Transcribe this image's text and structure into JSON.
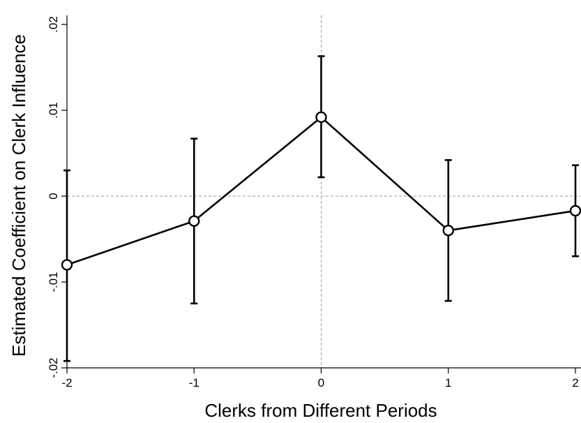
{
  "chart_data": {
    "type": "line",
    "xlabel": "Clerks from Different Periods",
    "ylabel": "Estimated Coefficient on Clerk Influence",
    "xlim": [
      -2,
      2
    ],
    "ylim": [
      -0.02,
      0.02
    ],
    "x_ticks": [
      {
        "value": -2,
        "label": "-2"
      },
      {
        "value": -1,
        "label": "-1"
      },
      {
        "value": 0,
        "label": "0"
      },
      {
        "value": 1,
        "label": "1"
      },
      {
        "value": 2,
        "label": "2"
      }
    ],
    "y_ticks": [
      {
        "value": -0.02,
        "label": "-.02"
      },
      {
        "value": -0.01,
        "label": "-.01"
      },
      {
        "value": 0,
        "label": "0"
      },
      {
        "value": 0.01,
        "label": ".01"
      },
      {
        "value": 0.02,
        "label": ".02"
      }
    ],
    "reference_lines": {
      "x": 0,
      "y": 0,
      "style": "dashed"
    },
    "series": [
      {
        "x": [
          -2,
          -1,
          0,
          1,
          2
        ],
        "y": [
          -0.008,
          -0.0029,
          0.0092,
          -0.004,
          -0.0017
        ],
        "ci_low": [
          -0.0192,
          -0.0125,
          0.0022,
          -0.0122,
          -0.007
        ],
        "ci_high": [
          0.003,
          0.0067,
          0.0163,
          0.0042,
          0.0036
        ]
      }
    ],
    "grid": false,
    "legend": "none",
    "colors": {
      "line": "#000000",
      "reference": "#999999",
      "axis": "#000000"
    }
  }
}
